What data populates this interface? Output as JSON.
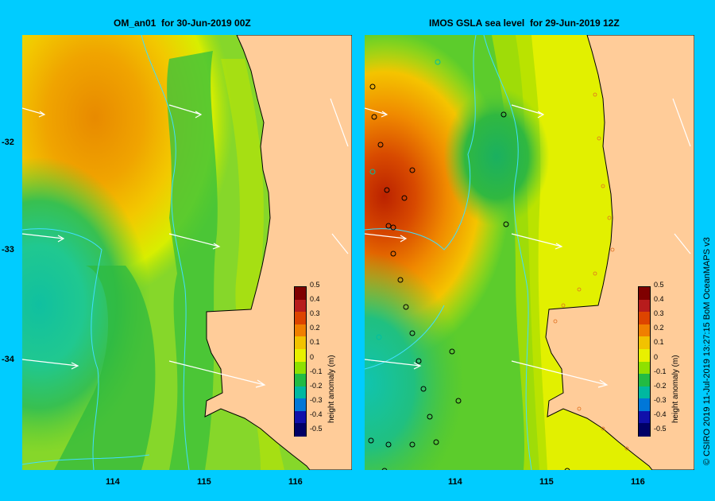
{
  "left_panel": {
    "title": "OM_an01  for 30-Jun-2019 00Z",
    "lat_ticks": [
      "-32",
      "-33",
      "-34"
    ],
    "lon_ticks": [
      "114",
      "115",
      "116"
    ]
  },
  "right_panel": {
    "title": "IMOS GSLA sea level  for 29-Jun-2019 12Z",
    "lon_ticks": [
      "114",
      "115",
      "116"
    ]
  },
  "colorbar": {
    "label": "height anomaly (m)",
    "ticks": [
      "0.5",
      "0.4",
      "0.3",
      "0.2",
      "0.1",
      "0",
      "-0.1",
      "-0.2",
      "-0.3",
      "-0.4",
      "-0.5"
    ],
    "colors": [
      "#7f0000",
      "#b71c1c",
      "#dd4400",
      "#f07f00",
      "#f2c200",
      "#e8f000",
      "#8fe000",
      "#22bb44",
      "#00b8a0",
      "#0077d8",
      "#1010aa",
      "#000066"
    ]
  },
  "credit": "© CSIRO 2019   11-Jul-2019 13:27:15 BoM OceanMAPS v3",
  "colors": {
    "frame_bg": "#00ccff",
    "land": "#ffcc99",
    "coast": "#000000",
    "vectors": "#ffffff"
  }
}
